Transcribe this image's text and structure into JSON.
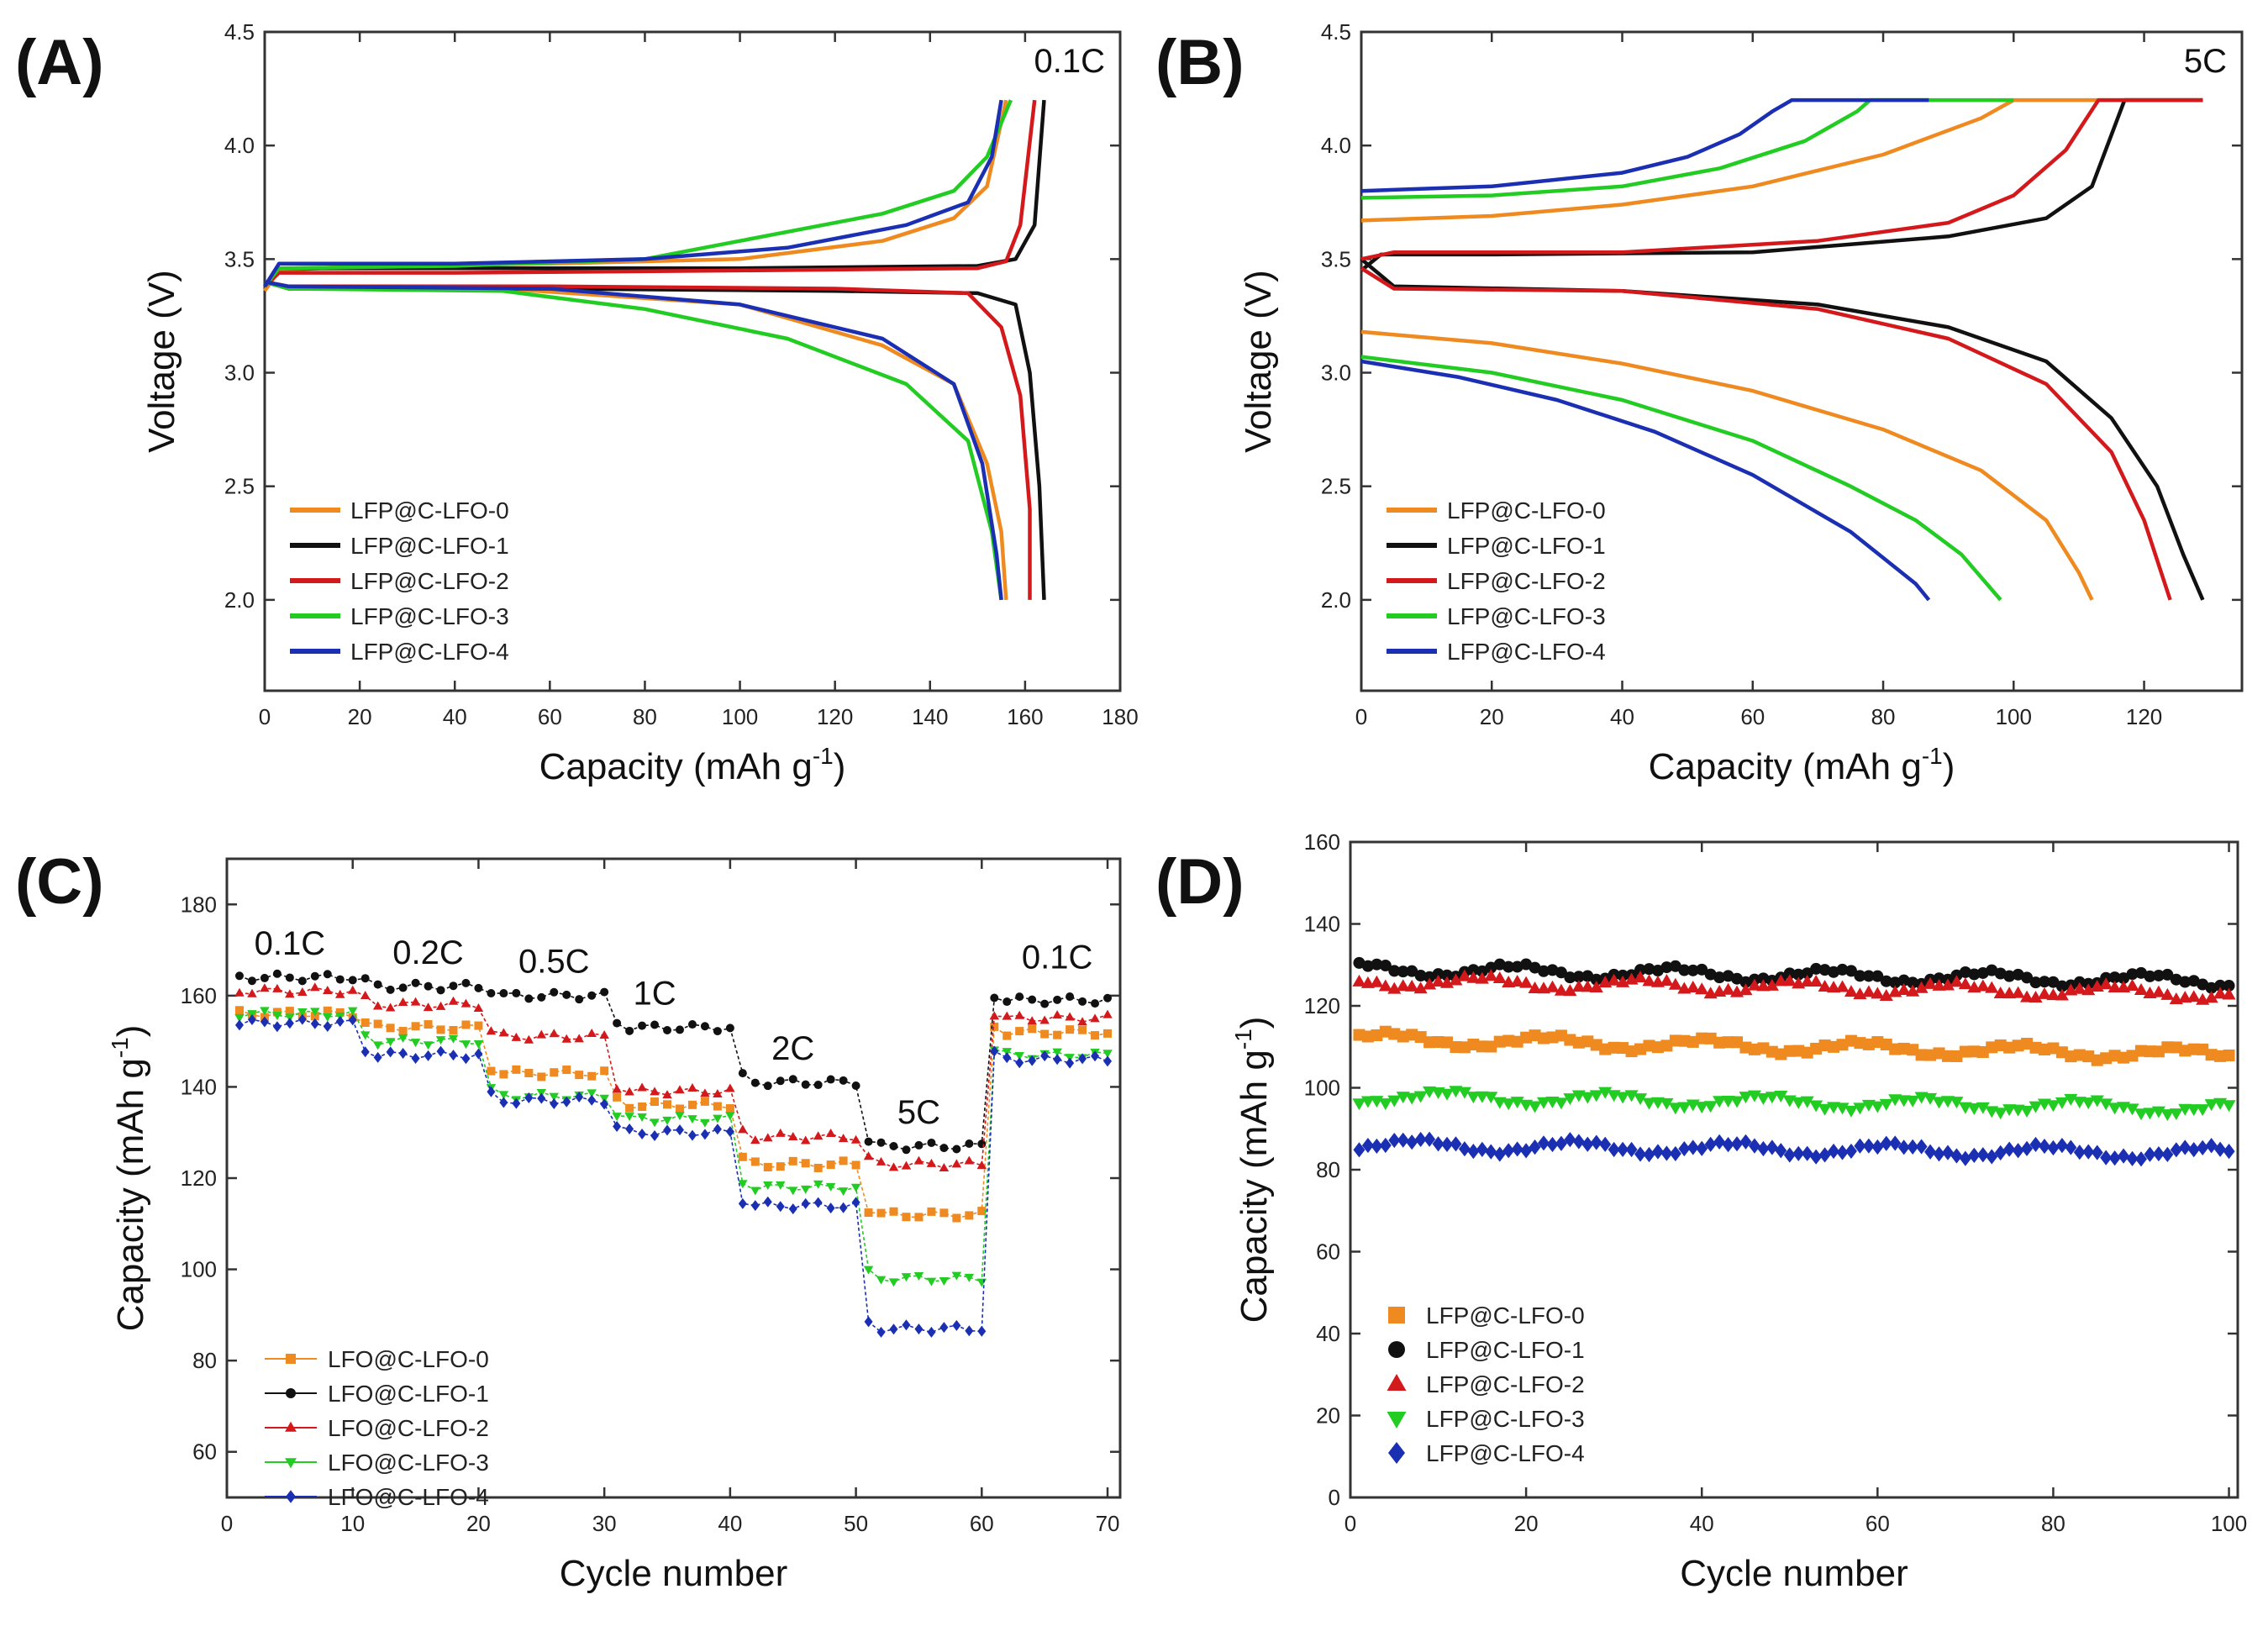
{
  "colors": {
    "s0": "#ee8a1f",
    "s1": "#111111",
    "s2": "#d4191c",
    "s3": "#22cc22",
    "s4": "#1b2fb3"
  },
  "chart_data": [
    {
      "type": "line",
      "panel": "(A)",
      "xlabel": "Capacity (mAh g",
      "xlabel_sup": "-1",
      "xlabel_close": ")",
      "ylabel": "Voltage (V)",
      "xlim": [
        0,
        180
      ],
      "ylim": [
        1.6,
        4.5
      ],
      "xticks": [
        "0",
        "20",
        "40",
        "60",
        "80",
        "100",
        "120",
        "140",
        "160",
        "180"
      ],
      "yticks": [
        "2.0",
        "2.5",
        "3.0",
        "3.5",
        "4.0",
        "4.5"
      ],
      "annotation": "0.1C",
      "legend_position": "bottom-left",
      "series": [
        {
          "name": "LFP@C-LFO-0",
          "color_key": "s0",
          "charge": [
            [
              0,
              3.36
            ],
            [
              3,
              3.45
            ],
            [
              20,
              3.47
            ],
            [
              60,
              3.48
            ],
            [
              100,
              3.5
            ],
            [
              130,
              3.58
            ],
            [
              145,
              3.68
            ],
            [
              152,
              3.82
            ],
            [
              156,
              4.2
            ]
          ],
          "discharge": [
            [
              0,
              3.4
            ],
            [
              5,
              3.38
            ],
            [
              50,
              3.37
            ],
            [
              100,
              3.3
            ],
            [
              130,
              3.12
            ],
            [
              145,
              2.95
            ],
            [
              152,
              2.6
            ],
            [
              155,
              2.3
            ],
            [
              156,
              2.0
            ]
          ]
        },
        {
          "name": "LFP@C-LFO-1",
          "color_key": "s1",
          "charge": [
            [
              0,
              3.38
            ],
            [
              3,
              3.46
            ],
            [
              40,
              3.46
            ],
            [
              100,
              3.46
            ],
            [
              150,
              3.47
            ],
            [
              158,
              3.5
            ],
            [
              162,
              3.65
            ],
            [
              164,
              4.2
            ]
          ],
          "discharge": [
            [
              0,
              3.4
            ],
            [
              5,
              3.37
            ],
            [
              60,
              3.37
            ],
            [
              120,
              3.36
            ],
            [
              150,
              3.35
            ],
            [
              158,
              3.3
            ],
            [
              161,
              3.0
            ],
            [
              163,
              2.5
            ],
            [
              164,
              2.0
            ]
          ]
        },
        {
          "name": "LFP@C-LFO-2",
          "color_key": "s2",
          "charge": [
            [
              0,
              3.38
            ],
            [
              3,
              3.44
            ],
            [
              40,
              3.44
            ],
            [
              100,
              3.45
            ],
            [
              150,
              3.46
            ],
            [
              156,
              3.49
            ],
            [
              159,
              3.65
            ],
            [
              162,
              4.2
            ]
          ],
          "discharge": [
            [
              0,
              3.4
            ],
            [
              5,
              3.38
            ],
            [
              60,
              3.38
            ],
            [
              120,
              3.37
            ],
            [
              148,
              3.35
            ],
            [
              155,
              3.2
            ],
            [
              159,
              2.9
            ],
            [
              161,
              2.4
            ],
            [
              161,
              2.0
            ]
          ]
        },
        {
          "name": "LFP@C-LFO-3",
          "color_key": "s3",
          "charge": [
            [
              0,
              3.38
            ],
            [
              3,
              3.46
            ],
            [
              40,
              3.47
            ],
            [
              80,
              3.5
            ],
            [
              100,
              3.58
            ],
            [
              130,
              3.7
            ],
            [
              145,
              3.8
            ],
            [
              152,
              3.95
            ],
            [
              157,
              4.2
            ]
          ],
          "discharge": [
            [
              0,
              3.4
            ],
            [
              5,
              3.37
            ],
            [
              50,
              3.36
            ],
            [
              80,
              3.28
            ],
            [
              110,
              3.15
            ],
            [
              135,
              2.95
            ],
            [
              148,
              2.7
            ],
            [
              153,
              2.3
            ],
            [
              155,
              2.0
            ]
          ]
        },
        {
          "name": "LFP@C-LFO-4",
          "color_key": "s4",
          "charge": [
            [
              0,
              3.38
            ],
            [
              3,
              3.48
            ],
            [
              40,
              3.48
            ],
            [
              80,
              3.5
            ],
            [
              110,
              3.55
            ],
            [
              135,
              3.65
            ],
            [
              148,
              3.75
            ],
            [
              153,
              3.95
            ],
            [
              155,
              4.2
            ]
          ],
          "discharge": [
            [
              0,
              3.4
            ],
            [
              5,
              3.38
            ],
            [
              60,
              3.37
            ],
            [
              100,
              3.3
            ],
            [
              130,
              3.15
            ],
            [
              145,
              2.95
            ],
            [
              151,
              2.6
            ],
            [
              154,
              2.2
            ],
            [
              155,
              2.0
            ]
          ]
        }
      ]
    },
    {
      "type": "line",
      "panel": "(B)",
      "xlabel": "Capacity (mAh g",
      "xlabel_sup": "-1",
      "xlabel_close": ")",
      "ylabel": "Voltage (V)",
      "xlim": [
        0,
        135
      ],
      "ylim": [
        1.6,
        4.5
      ],
      "xticks": [
        "0",
        "20",
        "40",
        "60",
        "80",
        "100",
        "120"
      ],
      "yticks": [
        "2.0",
        "2.5",
        "3.0",
        "3.5",
        "4.0",
        "4.5"
      ],
      "annotation": "5C",
      "legend_position": "bottom-left",
      "series": [
        {
          "name": "LFP@C-LFO-0",
          "color_key": "s0",
          "charge": [
            [
              0,
              3.67
            ],
            [
              20,
              3.69
            ],
            [
              40,
              3.74
            ],
            [
              60,
              3.82
            ],
            [
              80,
              3.96
            ],
            [
              95,
              4.12
            ],
            [
              100,
              4.2
            ],
            [
              129,
              4.2
            ]
          ],
          "discharge": [
            [
              0,
              3.18
            ],
            [
              20,
              3.13
            ],
            [
              40,
              3.04
            ],
            [
              60,
              2.92
            ],
            [
              80,
              2.75
            ],
            [
              95,
              2.57
            ],
            [
              105,
              2.35
            ],
            [
              110,
              2.12
            ],
            [
              112,
              2.0
            ]
          ]
        },
        {
          "name": "LFP@C-LFO-1",
          "color_key": "s1",
          "charge": [
            [
              0,
              3.45
            ],
            [
              3,
              3.52
            ],
            [
              20,
              3.52
            ],
            [
              60,
              3.53
            ],
            [
              90,
              3.6
            ],
            [
              105,
              3.68
            ],
            [
              112,
              3.82
            ],
            [
              117,
              4.2
            ],
            [
              129,
              4.2
            ]
          ],
          "discharge": [
            [
              0,
              3.5
            ],
            [
              5,
              3.38
            ],
            [
              40,
              3.36
            ],
            [
              70,
              3.3
            ],
            [
              90,
              3.2
            ],
            [
              105,
              3.05
            ],
            [
              115,
              2.8
            ],
            [
              122,
              2.5
            ],
            [
              126,
              2.2
            ],
            [
              129,
              2.0
            ]
          ]
        },
        {
          "name": "LFP@C-LFO-2",
          "color_key": "s2",
          "charge": [
            [
              0,
              3.5
            ],
            [
              5,
              3.53
            ],
            [
              40,
              3.53
            ],
            [
              70,
              3.58
            ],
            [
              90,
              3.66
            ],
            [
              100,
              3.78
            ],
            [
              108,
              3.98
            ],
            [
              113,
              4.2
            ],
            [
              129,
              4.2
            ]
          ],
          "discharge": [
            [
              0,
              3.46
            ],
            [
              5,
              3.37
            ],
            [
              40,
              3.36
            ],
            [
              70,
              3.28
            ],
            [
              90,
              3.15
            ],
            [
              105,
              2.95
            ],
            [
              115,
              2.65
            ],
            [
              120,
              2.35
            ],
            [
              124,
              2.0
            ]
          ]
        },
        {
          "name": "LFP@C-LFO-3",
          "color_key": "s3",
          "charge": [
            [
              0,
              3.77
            ],
            [
              20,
              3.78
            ],
            [
              40,
              3.82
            ],
            [
              55,
              3.9
            ],
            [
              68,
              4.02
            ],
            [
              76,
              4.15
            ],
            [
              78,
              4.2
            ],
            [
              100,
              4.2
            ]
          ],
          "discharge": [
            [
              0,
              3.07
            ],
            [
              20,
              3.0
            ],
            [
              40,
              2.88
            ],
            [
              60,
              2.7
            ],
            [
              75,
              2.5
            ],
            [
              85,
              2.35
            ],
            [
              92,
              2.2
            ],
            [
              98,
              2.0
            ]
          ]
        },
        {
          "name": "LFP@C-LFO-4",
          "color_key": "s4",
          "charge": [
            [
              0,
              3.8
            ],
            [
              20,
              3.82
            ],
            [
              40,
              3.88
            ],
            [
              50,
              3.95
            ],
            [
              58,
              4.05
            ],
            [
              63,
              4.15
            ],
            [
              66,
              4.2
            ],
            [
              87,
              4.2
            ]
          ],
          "discharge": [
            [
              0,
              3.05
            ],
            [
              15,
              2.98
            ],
            [
              30,
              2.88
            ],
            [
              45,
              2.74
            ],
            [
              60,
              2.55
            ],
            [
              75,
              2.3
            ],
            [
              85,
              2.07
            ],
            [
              87,
              2.0
            ]
          ]
        }
      ]
    },
    {
      "type": "scatter",
      "panel": "(C)",
      "xlabel": "Cycle number",
      "ylabel": "Capacity (mAh g",
      "ylabel_sup": "-1",
      "ylabel_close": ")",
      "xlim": [
        0,
        71
      ],
      "ylim": [
        50,
        190
      ],
      "xticks": [
        "0",
        "10",
        "20",
        "30",
        "40",
        "50",
        "60",
        "70"
      ],
      "yticks": [
        "60",
        "80",
        "100",
        "120",
        "140",
        "160",
        "180"
      ],
      "rate_labels": [
        {
          "text": "0.1C",
          "x": 5,
          "y": 169
        },
        {
          "text": "0.2C",
          "x": 16,
          "y": 167
        },
        {
          "text": "0.5C",
          "x": 26,
          "y": 165
        },
        {
          "text": "1C",
          "x": 34,
          "y": 158
        },
        {
          "text": "2C",
          "x": 45,
          "y": 146
        },
        {
          "text": "5C",
          "x": 55,
          "y": 132
        },
        {
          "text": "0.1C",
          "x": 66,
          "y": 166
        }
      ],
      "legend_position": "bottom-left",
      "series": [
        {
          "name": "LFO@C-LFO-0",
          "color_key": "s0",
          "marker": "square",
          "plateaus": [
            156,
            153,
            143,
            136,
            123,
            112,
            152
          ]
        },
        {
          "name": "LFO@C-LFO-1",
          "color_key": "s1",
          "marker": "circle",
          "plateaus": [
            164,
            162,
            160,
            153,
            141,
            127,
            159
          ]
        },
        {
          "name": "LFO@C-LFO-2",
          "color_key": "s2",
          "marker": "triangle-up",
          "plateaus": [
            161,
            158,
            151,
            139,
            129,
            123,
            155
          ]
        },
        {
          "name": "LFO@C-LFO-3",
          "color_key": "s3",
          "marker": "triangle-down",
          "plateaus": [
            156,
            150,
            138,
            133,
            118,
            98,
            147
          ]
        },
        {
          "name": "LFO@C-LFO-4",
          "color_key": "s4",
          "marker": "diamond",
          "plateaus": [
            154,
            147,
            137,
            130,
            114,
            87,
            146
          ]
        }
      ]
    },
    {
      "type": "scatter",
      "panel": "(D)",
      "xlabel": "Cycle number",
      "ylabel": "Capacity (mAh g",
      "ylabel_sup": "-1",
      "ylabel_close": ")",
      "xlim": [
        0,
        101
      ],
      "ylim": [
        0,
        160
      ],
      "xticks": [
        "0",
        "20",
        "40",
        "60",
        "80",
        "100"
      ],
      "yticks": [
        "0",
        "20",
        "40",
        "60",
        "80",
        "100",
        "120",
        "140",
        "160"
      ],
      "legend_position": "bottom-left",
      "series": [
        {
          "name": "LFP@C-LFO-0",
          "color_key": "s0",
          "marker": "square",
          "base": 112,
          "end": 108
        },
        {
          "name": "LFP@C-LFO-1",
          "color_key": "s1",
          "marker": "circle",
          "base": 129,
          "end": 126
        },
        {
          "name": "LFP@C-LFO-2",
          "color_key": "s2",
          "marker": "triangle-up",
          "base": 126,
          "end": 123
        },
        {
          "name": "LFP@C-LFO-3",
          "color_key": "s3",
          "marker": "triangle-down",
          "base": 98,
          "end": 95
        },
        {
          "name": "LFP@C-LFO-4",
          "color_key": "s4",
          "marker": "diamond",
          "base": 86,
          "end": 84
        }
      ]
    }
  ]
}
